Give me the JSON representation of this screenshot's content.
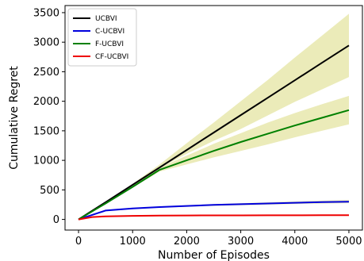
{
  "chart_data": {
    "type": "line",
    "xlabel": "Number of Episodes",
    "ylabel": "Cumulative Regret",
    "xlim": [
      -250,
      5250
    ],
    "ylim": [
      -180,
      3620
    ],
    "xticks": [
      0,
      1000,
      2000,
      3000,
      4000,
      5000
    ],
    "yticks": [
      0,
      500,
      1000,
      1500,
      2000,
      2500,
      3000,
      3500
    ],
    "grid": false,
    "legend_position": "top-left",
    "band_color": "#e6e6a8",
    "series": [
      {
        "name": "UCBVI",
        "color": "#000000",
        "x": [
          0,
          500,
          1000,
          1500,
          2000,
          2500,
          3000,
          3500,
          4000,
          4500,
          5000
        ],
        "y": [
          0,
          290,
          585,
          880,
          1175,
          1470,
          1765,
          2060,
          2355,
          2650,
          2945
        ],
        "lower": [
          0,
          290,
          585,
          870,
          1110,
          1330,
          1530,
          1760,
          1990,
          2200,
          2410
        ],
        "upper": [
          0,
          295,
          600,
          930,
          1290,
          1640,
          2000,
          2360,
          2740,
          3110,
          3480
        ]
      },
      {
        "name": "C-UCBVI",
        "color": "#0000dd",
        "x": [
          0,
          500,
          1000,
          1500,
          2000,
          2500,
          3000,
          3500,
          4000,
          4500,
          5000
        ],
        "y": [
          0,
          150,
          185,
          210,
          228,
          245,
          258,
          270,
          282,
          292,
          300
        ],
        "lower": [
          0,
          145,
          178,
          200,
          215,
          230,
          240,
          250,
          260,
          268,
          275
        ],
        "upper": [
          0,
          155,
          192,
          220,
          240,
          258,
          275,
          290,
          305,
          318,
          330
        ]
      },
      {
        "name": "F-UCBVI",
        "color": "#008000",
        "x": [
          0,
          500,
          1000,
          1500,
          2000,
          2500,
          3000,
          3500,
          4000,
          4500,
          5000
        ],
        "y": [
          0,
          270,
          550,
          840,
          1000,
          1160,
          1310,
          1450,
          1590,
          1720,
          1850
        ],
        "lower": [
          0,
          265,
          540,
          810,
          930,
          1050,
          1160,
          1270,
          1390,
          1500,
          1610
        ],
        "upper": [
          0,
          275,
          565,
          880,
          1080,
          1280,
          1460,
          1640,
          1800,
          1950,
          2090
        ]
      },
      {
        "name": "CF-UCBVI",
        "color": "#ee0000",
        "x": [
          0,
          250,
          500,
          1000,
          1500,
          2000,
          2500,
          3000,
          3500,
          4000,
          4500,
          5000
        ],
        "y": [
          0,
          40,
          52,
          60,
          64,
          67,
          68,
          69,
          70,
          70,
          71,
          71
        ],
        "lower": [
          0,
          36,
          47,
          55,
          58,
          60,
          61,
          62,
          62,
          62,
          63,
          63
        ],
        "upper": [
          0,
          44,
          57,
          66,
          70,
          74,
          75,
          76,
          78,
          79,
          80,
          80
        ]
      }
    ]
  }
}
